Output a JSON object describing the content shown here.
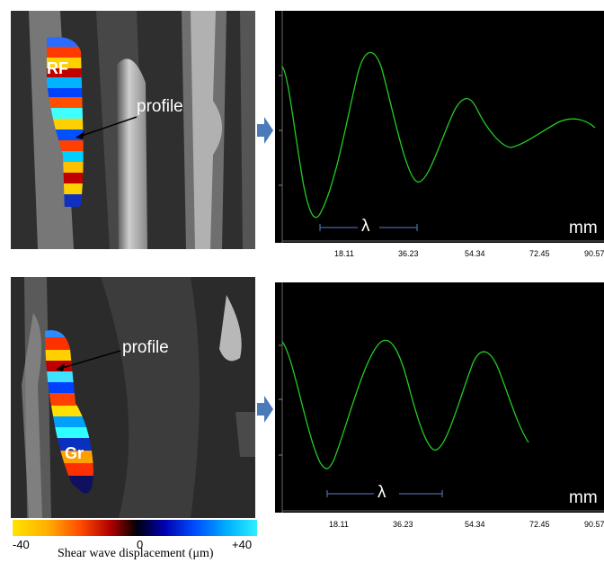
{
  "panels": [
    {
      "muscle_label": "RF",
      "profile_label": "profile",
      "lambda_label": "λ",
      "unit_label": "mm",
      "x_ticks": [
        "18.11",
        "36.23",
        "54.34",
        "72.45",
        "90.57"
      ]
    },
    {
      "muscle_label": "Gr",
      "profile_label": "profile",
      "lambda_label": "λ",
      "unit_label": "mm",
      "x_ticks": [
        "18.11",
        "36.23",
        "54.34",
        "72.45",
        "90.57"
      ]
    }
  ],
  "colorbar": {
    "min_label": "-40",
    "mid_label": "0",
    "max_label": "+40",
    "caption": "Shear wave displacement (μm)"
  },
  "colors": {
    "curve": "#22cc22",
    "arrow": "#4a7ab8",
    "lambda_bar": "#5a80c0"
  }
}
